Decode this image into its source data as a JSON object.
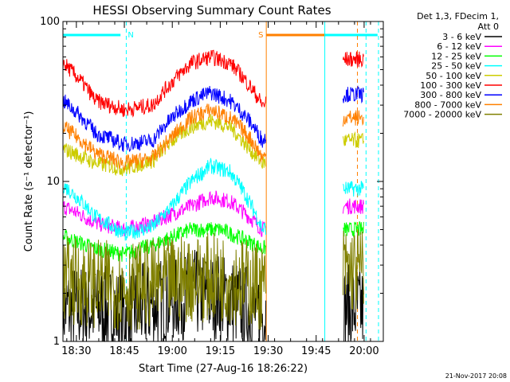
{
  "chart_data": {
    "type": "line",
    "title": "HESSI Observing Summary Count Rates",
    "xlabel": "Start Time (27-Aug-16 18:26:22)",
    "ylabel": "Count Rate (s⁻¹ detector⁻¹)",
    "yscale": "log",
    "ylim": [
      1,
      100
    ],
    "xlim_minutes": [
      18.43,
      20.1
    ],
    "x_ticks": [
      {
        "label": "18:30",
        "t": 18.5
      },
      {
        "label": "18:45",
        "t": 18.75
      },
      {
        "label": "19:00",
        "t": 19.0
      },
      {
        "label": "19:15",
        "t": 19.25
      },
      {
        "label": "19:30",
        "t": 19.5
      },
      {
        "label": "19:45",
        "t": 19.75
      },
      {
        "label": "20:00",
        "t": 20.0
      }
    ],
    "y_ticks": [
      {
        "label": "1",
        "v": 1
      },
      {
        "label": "10",
        "v": 10
      },
      {
        "label": "100",
        "v": 100
      }
    ],
    "legend_header": [
      "Det 1,3, FDecim 1,",
      "Att 0"
    ],
    "legend_placement": "right",
    "series": [
      {
        "name": "3 - 6 keV",
        "color": "#000000",
        "x": [
          18.43,
          18.6,
          18.75,
          18.9,
          19.1,
          19.25,
          19.4,
          19.47,
          19.9,
          20.0
        ],
        "y": [
          1.6,
          1.6,
          1.5,
          1.7,
          2.0,
          1.9,
          1.6,
          1.5,
          1.6,
          1.6
        ]
      },
      {
        "name": "6 - 12 keV",
        "color": "#ff00ff",
        "x": [
          18.43,
          18.6,
          18.75,
          18.9,
          19.1,
          19.2,
          19.3,
          19.4,
          19.47,
          19.9,
          20.0
        ],
        "y": [
          7.0,
          5.5,
          5.0,
          5.5,
          7.0,
          8.0,
          7.5,
          6.0,
          5.0,
          7.0,
          7.0
        ]
      },
      {
        "name": "12 - 25 keV",
        "color": "#00ff00",
        "x": [
          18.43,
          18.6,
          18.75,
          18.9,
          19.1,
          19.25,
          19.4,
          19.47,
          19.9,
          20.0
        ],
        "y": [
          4.5,
          3.8,
          3.5,
          4.0,
          5.0,
          5.0,
          4.2,
          3.8,
          5.0,
          5.0
        ]
      },
      {
        "name": "25 - 50 keV",
        "color": "#00ffff",
        "x": [
          18.43,
          18.6,
          18.75,
          18.9,
          19.0,
          19.1,
          19.2,
          19.3,
          19.4,
          19.47,
          19.9,
          20.0
        ],
        "y": [
          9.5,
          6.0,
          4.7,
          5.2,
          7.0,
          10.0,
          12.5,
          11.5,
          7.5,
          5.0,
          9.0,
          9.0
        ]
      },
      {
        "name": "50 - 100 keV",
        "color": "#cccc00",
        "x": [
          18.43,
          18.6,
          18.75,
          18.9,
          19.0,
          19.1,
          19.2,
          19.3,
          19.4,
          19.47,
          19.9,
          20.0
        ],
        "y": [
          16.0,
          13.0,
          12.0,
          13.5,
          18.0,
          22.0,
          24.0,
          22.0,
          16.0,
          13.0,
          18.0,
          18.0
        ]
      },
      {
        "name": "100 - 300 keV",
        "color": "#ff0000",
        "x": [
          18.43,
          18.6,
          18.75,
          18.9,
          19.0,
          19.1,
          19.2,
          19.3,
          19.4,
          19.47,
          19.9,
          20.0
        ],
        "y": [
          55,
          32,
          28,
          30,
          42,
          55,
          60,
          55,
          40,
          30,
          58,
          58
        ]
      },
      {
        "name": "300 - 800 keV",
        "color": "#0000ff",
        "x": [
          18.43,
          18.6,
          18.75,
          18.9,
          19.0,
          19.1,
          19.2,
          19.3,
          19.4,
          19.47,
          19.9,
          20.0
        ],
        "y": [
          32,
          20,
          17,
          18,
          25,
          32,
          36,
          32,
          24,
          18,
          35,
          35
        ]
      },
      {
        "name": "800 - 7000 keV",
        "color": "#ff8000",
        "x": [
          18.43,
          18.6,
          18.75,
          18.9,
          19.0,
          19.1,
          19.2,
          19.3,
          19.4,
          19.47,
          19.9,
          20.0
        ],
        "y": [
          22,
          15,
          13,
          14,
          19,
          25,
          28,
          25,
          19,
          14,
          25,
          25
        ]
      },
      {
        "name": "7000 - 20000 keV",
        "color": "#808000",
        "x": [
          18.43,
          18.6,
          18.75,
          18.9,
          19.1,
          19.25,
          19.4,
          19.47,
          19.9,
          20.0
        ],
        "y": [
          2.4,
          2.3,
          2.2,
          2.3,
          2.5,
          2.5,
          2.3,
          2.2,
          2.8,
          2.8
        ]
      }
    ],
    "annotations": [
      {
        "label": "N",
        "color": "#00ffff",
        "t": 18.76,
        "bar_from": 18.43,
        "bar_to": 18.73,
        "dashed_line": true
      },
      {
        "label": "S",
        "color": "#ff8000",
        "t": 19.49,
        "bar_from": 19.49,
        "bar_to": 19.92,
        "dashed_line": false
      },
      {
        "label": "",
        "color": "#00ffff",
        "t": 19.795,
        "bar_from": 19.795,
        "bar_to": 20.07,
        "dashed_line": false
      },
      {
        "label": "",
        "color": "#ff8000",
        "t": 19.965,
        "bar_from": null,
        "bar_to": null,
        "dashed_line": true
      },
      {
        "label": "",
        "color": "#00ffff",
        "t": 20.01,
        "bar_from": null,
        "bar_to": null,
        "dashed_line": true
      },
      {
        "label": "",
        "color": "#00ffff",
        "t": 20.075,
        "bar_from": null,
        "bar_to": null,
        "dashed_line": true
      }
    ],
    "data_gap": {
      "from": 19.49,
      "to": 19.89
    }
  },
  "footer": {
    "timestamp": "21-Nov-2017 20:08"
  }
}
